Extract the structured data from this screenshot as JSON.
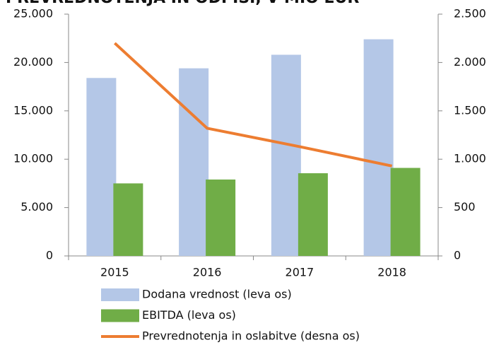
{
  "chart_data": {
    "type": "bar-line",
    "title": "PREVREDNOTENJA IN ODPISI, V MIO EUR",
    "categories": [
      "2015",
      "2016",
      "2017",
      "2018"
    ],
    "series": [
      {
        "name": "Dodana vrednost (leva os)",
        "color": "#b4c7e7",
        "type": "bar",
        "values": [
          18400,
          19400,
          20800,
          22400
        ]
      },
      {
        "name": "EBITDA (leva os)",
        "color": "#70ad47",
        "type": "bar",
        "values": [
          7500,
          7900,
          8550,
          9100
        ]
      },
      {
        "name": "Prevrednotenja in oslabitve (desna os)",
        "color": "#ed7d31",
        "type": "line",
        "axis": "y2",
        "values": [
          2200,
          1320,
          1130,
          930
        ]
      }
    ],
    "ylim": [
      0,
      25000
    ],
    "yticks": [
      0,
      {
        "value": 5000,
        "label": "5.000"
      },
      {
        "value": 10000,
        "label": "10.000"
      },
      {
        "value": 15000,
        "label": "15.000"
      },
      {
        "value": 20000,
        "label": "20.000"
      },
      {
        "value": 25000,
        "label": "25.000"
      }
    ],
    "y2lim": [
      0,
      2500
    ],
    "y2ticks": [
      0,
      500,
      {
        "value": 1000,
        "label": "1.000"
      },
      {
        "value": 1500,
        "label": "1.500"
      },
      {
        "value": 2000,
        "label": "2.000"
      },
      {
        "value": 2500,
        "label": "2.500"
      }
    ],
    "grid": false,
    "legend": "bottom"
  }
}
